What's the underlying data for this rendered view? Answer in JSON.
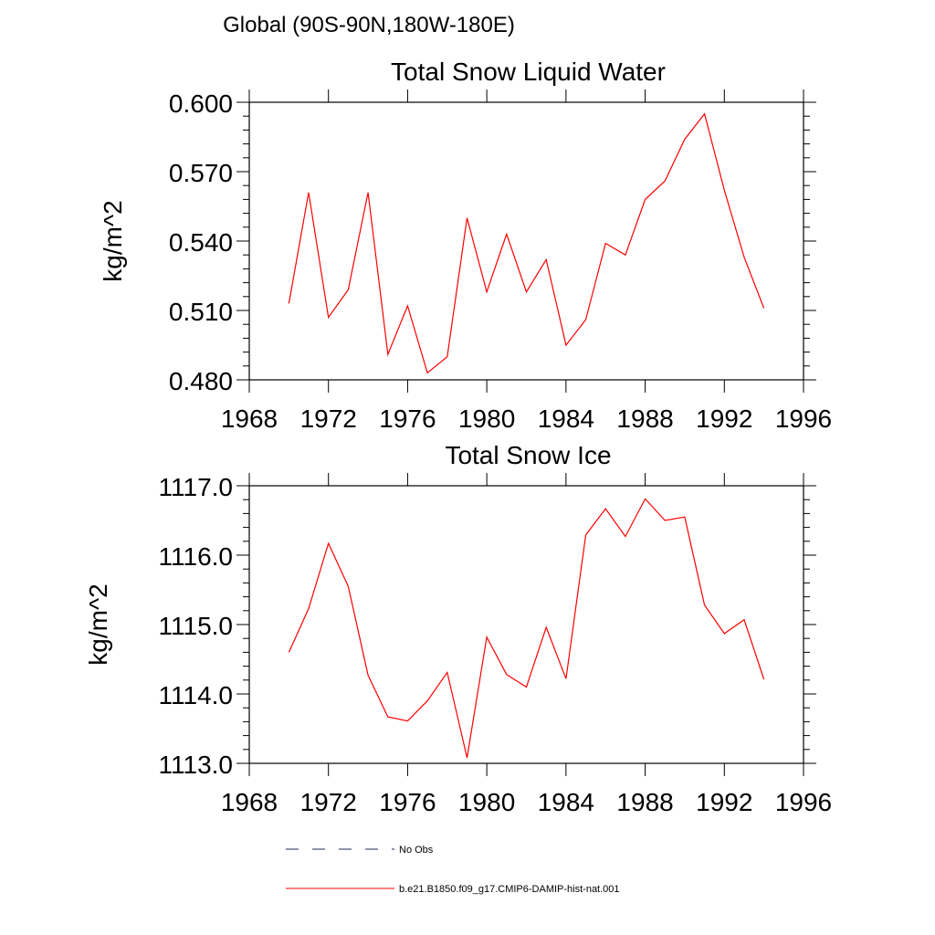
{
  "page": {
    "title": "Global (90S-90N,180W-180E)"
  },
  "legend": {
    "items": [
      {
        "label": "No Obs",
        "style": "dashed",
        "color": "#1f2a5a"
      },
      {
        "label": "b.e21.B1850.f09_g17.CMIP6-DAMIP-hist-nat.001",
        "style": "solid",
        "color": "#ff0000"
      }
    ]
  },
  "chart_data": [
    {
      "type": "line",
      "title": "Total Snow Liquid Water",
      "xlabel": "",
      "ylabel": "kg/m^2",
      "xlim": [
        1968,
        1996
      ],
      "ylim": [
        0.48,
        0.6
      ],
      "xticks": [
        1968,
        1972,
        1976,
        1980,
        1984,
        1988,
        1992,
        1996
      ],
      "xtick_labels": [
        "1968",
        "1972",
        "1976",
        "1980",
        "1984",
        "1988",
        "1992",
        "1996"
      ],
      "yticks": [
        0.48,
        0.51,
        0.54,
        0.57,
        0.6
      ],
      "ytick_labels": [
        "0.480",
        "0.510",
        "0.540",
        "0.570",
        "0.600"
      ],
      "grid": false,
      "series": [
        {
          "color": "#ff0000",
          "x": [
            1970,
            1971,
            1972,
            1973,
            1974,
            1975,
            1976,
            1977,
            1978,
            1979,
            1980,
            1981,
            1982,
            1983,
            1984,
            1985,
            1986,
            1987,
            1988,
            1989,
            1990,
            1991,
            1992,
            1993,
            1994
          ],
          "y": [
            0.513,
            0.561,
            0.507,
            0.519,
            0.561,
            0.491,
            0.512,
            0.483,
            0.49,
            0.55,
            0.518,
            0.543,
            0.518,
            0.532,
            0.495,
            0.506,
            0.539,
            0.534,
            0.558,
            0.566,
            0.584,
            0.595,
            0.562,
            0.533,
            0.511
          ]
        }
      ]
    },
    {
      "type": "line",
      "title": "Total Snow Ice",
      "xlabel": "",
      "ylabel": "kg/m^2",
      "xlim": [
        1968,
        1996
      ],
      "ylim": [
        1113.0,
        1117.0
      ],
      "xticks": [
        1968,
        1972,
        1976,
        1980,
        1984,
        1988,
        1992,
        1996
      ],
      "xtick_labels": [
        "1968",
        "1972",
        "1976",
        "1980",
        "1984",
        "1988",
        "1992",
        "1996"
      ],
      "yticks": [
        1113.0,
        1114.0,
        1115.0,
        1116.0,
        1117.0
      ],
      "ytick_labels": [
        "1113.0",
        "1114.0",
        "1115.0",
        "1116.0",
        "1117.0"
      ],
      "grid": false,
      "series": [
        {
          "color": "#ff0000",
          "x": [
            1970,
            1971,
            1972,
            1973,
            1974,
            1975,
            1976,
            1977,
            1978,
            1979,
            1980,
            1981,
            1982,
            1983,
            1984,
            1985,
            1986,
            1987,
            1988,
            1989,
            1990,
            1991,
            1992,
            1993,
            1994
          ],
          "y": [
            1114.6,
            1115.23,
            1116.17,
            1115.55,
            1114.27,
            1113.67,
            1113.61,
            1113.9,
            1114.31,
            1113.08,
            1114.82,
            1114.28,
            1114.1,
            1114.96,
            1114.22,
            1116.29,
            1116.67,
            1116.27,
            1116.81,
            1116.5,
            1116.55,
            1115.28,
            1114.87,
            1115.07,
            1114.21
          ]
        }
      ]
    }
  ]
}
